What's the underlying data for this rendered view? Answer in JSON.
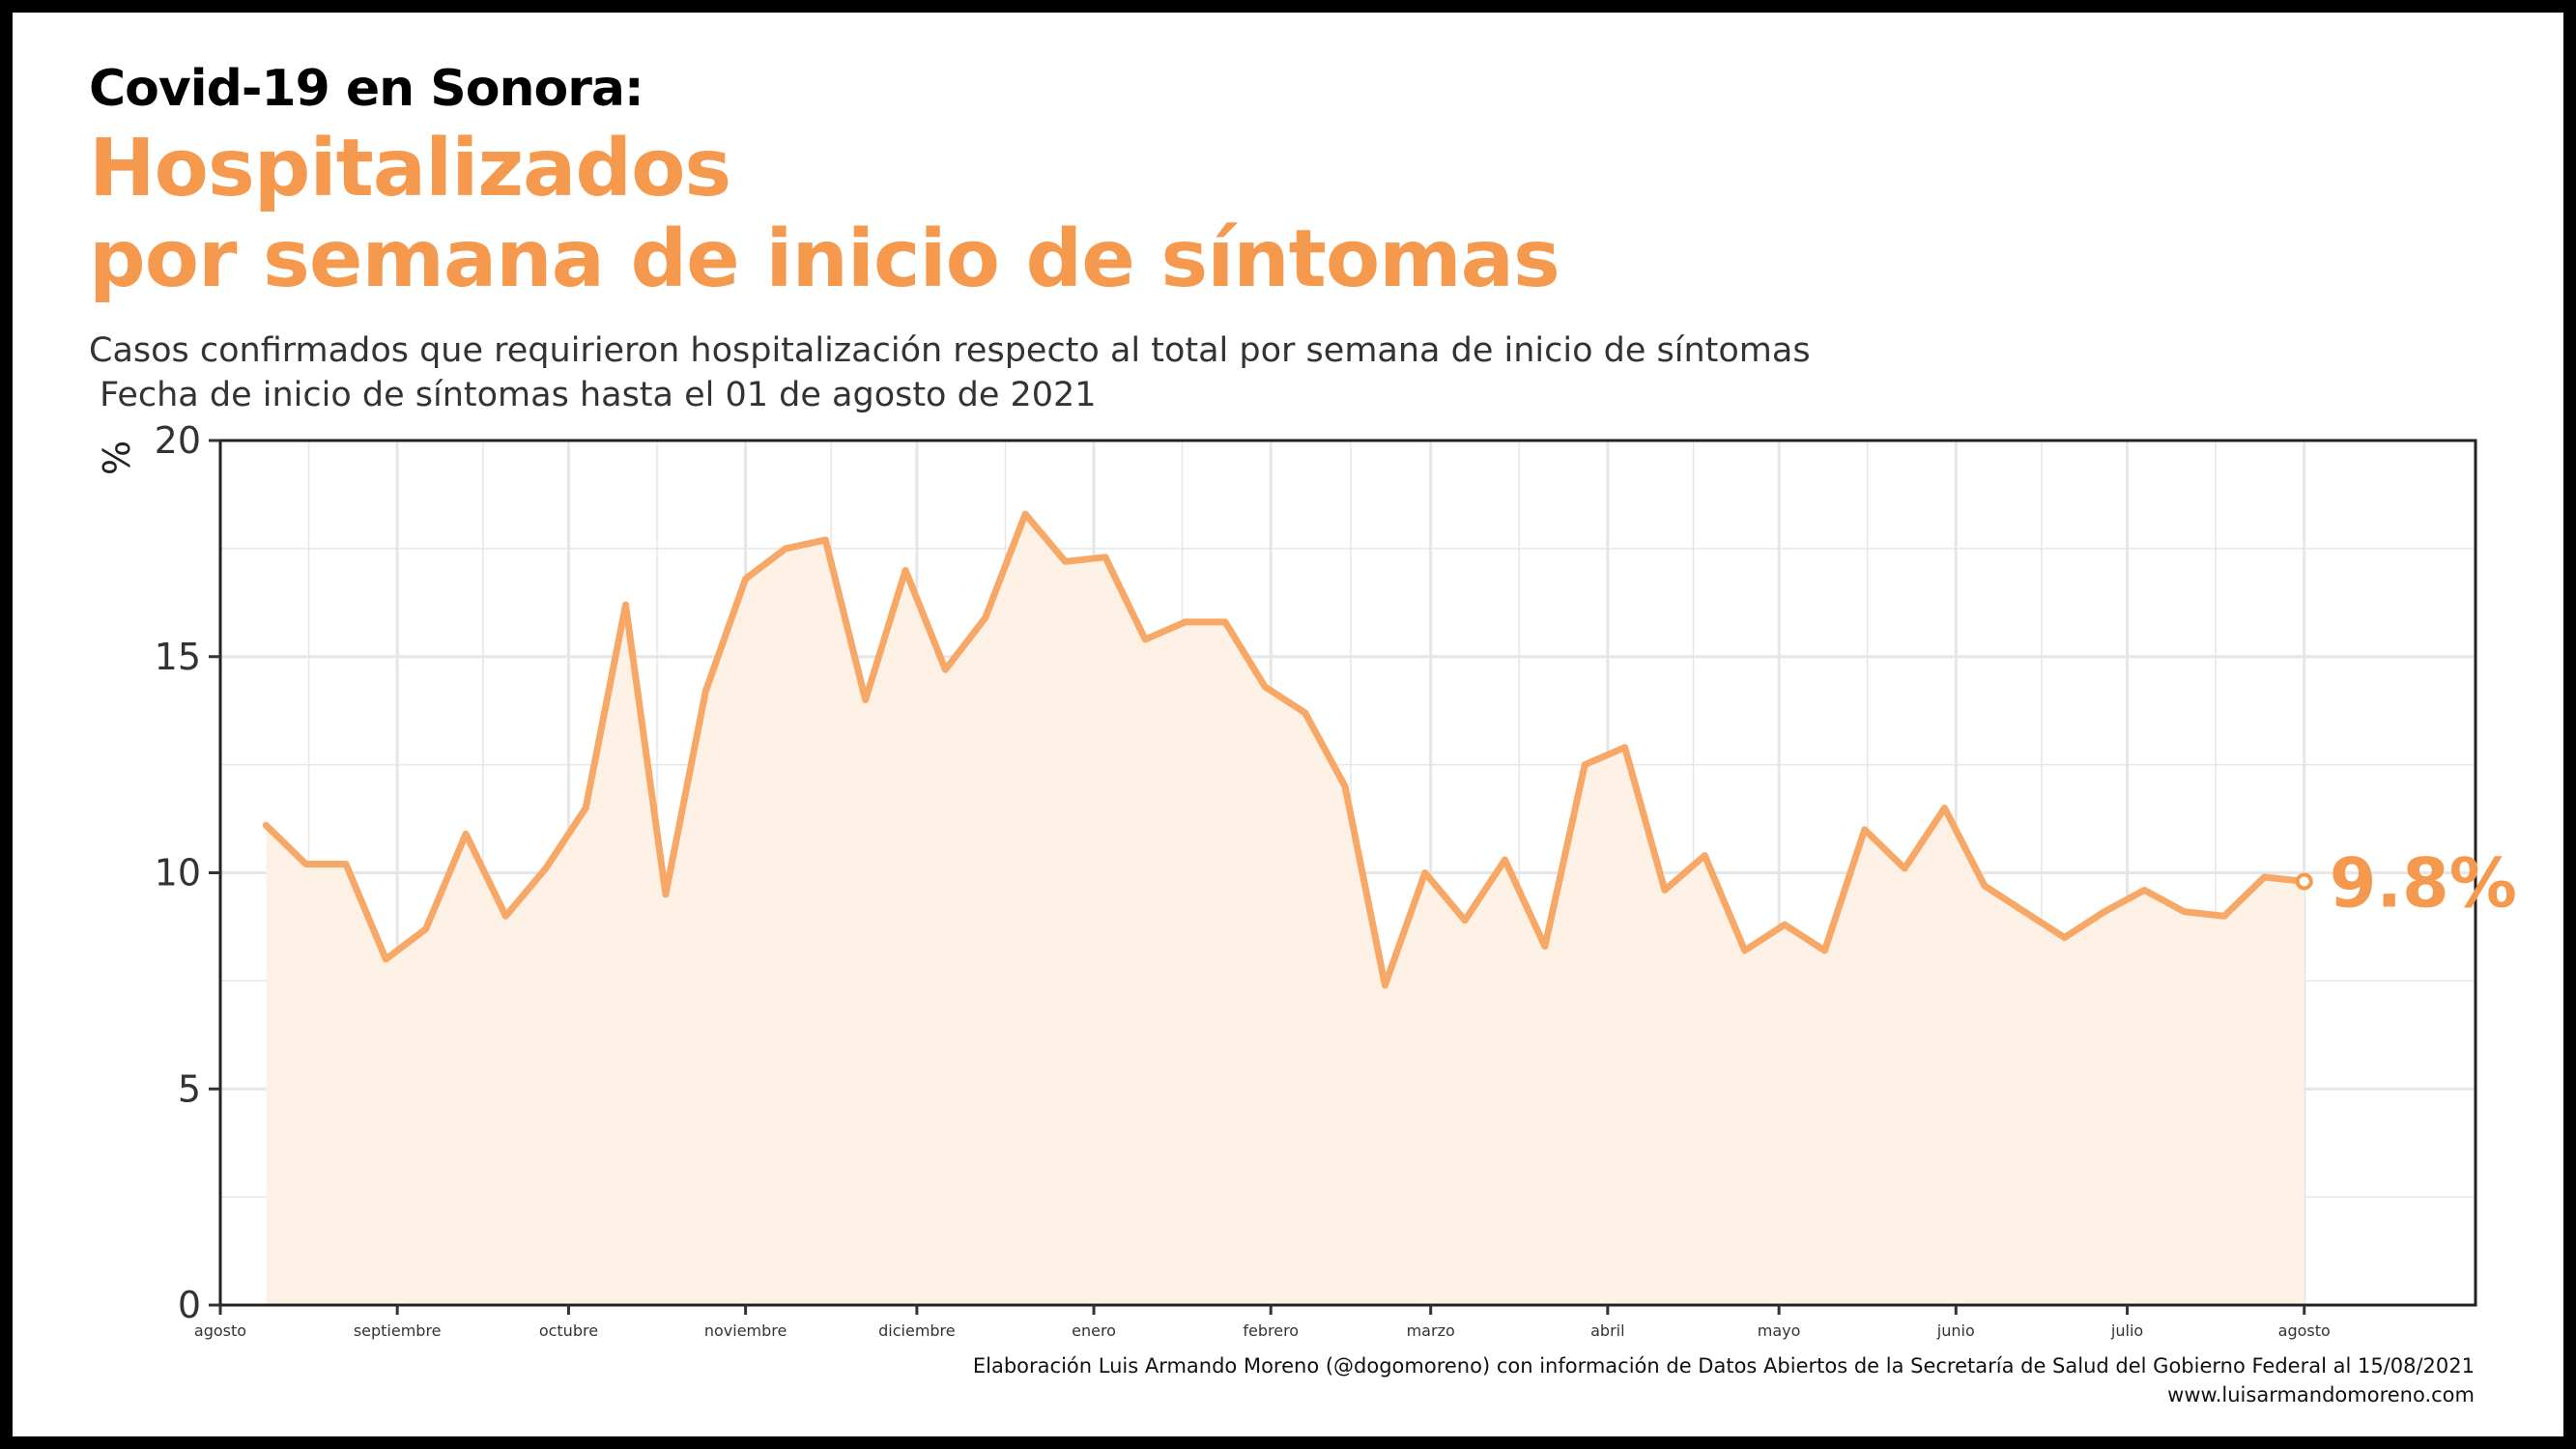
{
  "header": {
    "kicker": "Covid-19 en Sonora:",
    "title_line1": "Hospitalizados",
    "title_line2": "por semana de inicio de síntomas",
    "subtitle_line1": "Casos confirmados que requirieron hospitalización respecto al total por semana de inicio de síntomas",
    "subtitle_line2": " Fecha de inicio de síntomas hasta el 01 de agosto de 2021"
  },
  "footer": {
    "credit": "Elaboración Luis Armando Moreno (@dogomoreno) con información de Datos Abiertos de la Secretaría de Salud del Gobierno Federal al 15/08/2021",
    "website": "www.luisarmandomoreno.com"
  },
  "colors": {
    "line": "#f7a766",
    "area": "#fdf1e6",
    "highlight": "#f5994e",
    "grid": "#e6e6e6",
    "axis_text": "#333333"
  },
  "chart_data": {
    "type": "area",
    "ylabel": "%",
    "ylim": [
      0,
      20
    ],
    "yticks": [
      0,
      5,
      10,
      15,
      20
    ],
    "x_unit": "weekly",
    "xlim": [
      "2020-08-01",
      "2021-08-31"
    ],
    "xticks": [
      {
        "date": "2020-08-01",
        "label": "agosto"
      },
      {
        "date": "2020-09-01",
        "label": "septiembre"
      },
      {
        "date": "2020-10-01",
        "label": "octubre"
      },
      {
        "date": "2020-11-01",
        "label": "noviembre"
      },
      {
        "date": "2020-12-01",
        "label": "diciembre"
      },
      {
        "date": "2021-01-01",
        "label": "enero"
      },
      {
        "date": "2021-02-01",
        "label": "febrero"
      },
      {
        "date": "2021-03-01",
        "label": "marzo"
      },
      {
        "date": "2021-04-01",
        "label": "abril"
      },
      {
        "date": "2021-05-01",
        "label": "mayo"
      },
      {
        "date": "2021-06-01",
        "label": "junio"
      },
      {
        "date": "2021-07-01",
        "label": "julio"
      },
      {
        "date": "2021-08-01",
        "label": "agosto"
      }
    ],
    "grid": true,
    "series": [
      {
        "values": [
          {
            "x": "2020-08-09",
            "y": 11.1
          },
          {
            "x": "2020-08-16",
            "y": 10.2
          },
          {
            "x": "2020-08-23",
            "y": 10.2
          },
          {
            "x": "2020-08-30",
            "y": 8.0
          },
          {
            "x": "2020-09-06",
            "y": 8.7
          },
          {
            "x": "2020-09-13",
            "y": 10.9
          },
          {
            "x": "2020-09-20",
            "y": 9.0
          },
          {
            "x": "2020-09-27",
            "y": 10.1
          },
          {
            "x": "2020-10-04",
            "y": 11.5
          },
          {
            "x": "2020-10-11",
            "y": 16.2
          },
          {
            "x": "2020-10-18",
            "y": 9.5
          },
          {
            "x": "2020-10-25",
            "y": 14.2
          },
          {
            "x": "2020-11-01",
            "y": 16.8
          },
          {
            "x": "2020-11-08",
            "y": 17.5
          },
          {
            "x": "2020-11-15",
            "y": 17.7
          },
          {
            "x": "2020-11-22",
            "y": 14.0
          },
          {
            "x": "2020-11-29",
            "y": 17.0
          },
          {
            "x": "2020-12-06",
            "y": 14.7
          },
          {
            "x": "2020-12-13",
            "y": 15.9
          },
          {
            "x": "2020-12-20",
            "y": 18.3
          },
          {
            "x": "2020-12-27",
            "y": 17.2
          },
          {
            "x": "2021-01-03",
            "y": 17.3
          },
          {
            "x": "2021-01-10",
            "y": 15.4
          },
          {
            "x": "2021-01-17",
            "y": 15.8
          },
          {
            "x": "2021-01-24",
            "y": 15.8
          },
          {
            "x": "2021-01-31",
            "y": 14.3
          },
          {
            "x": "2021-02-07",
            "y": 13.7
          },
          {
            "x": "2021-02-14",
            "y": 12.0
          },
          {
            "x": "2021-02-21",
            "y": 7.4
          },
          {
            "x": "2021-02-28",
            "y": 10.0
          },
          {
            "x": "2021-03-07",
            "y": 8.9
          },
          {
            "x": "2021-03-14",
            "y": 10.3
          },
          {
            "x": "2021-03-21",
            "y": 8.3
          },
          {
            "x": "2021-03-28",
            "y": 12.5
          },
          {
            "x": "2021-04-04",
            "y": 12.9
          },
          {
            "x": "2021-04-11",
            "y": 9.6
          },
          {
            "x": "2021-04-18",
            "y": 10.4
          },
          {
            "x": "2021-04-25",
            "y": 8.2
          },
          {
            "x": "2021-05-02",
            "y": 8.8
          },
          {
            "x": "2021-05-09",
            "y": 8.2
          },
          {
            "x": "2021-05-16",
            "y": 11.0
          },
          {
            "x": "2021-05-23",
            "y": 10.1
          },
          {
            "x": "2021-05-30",
            "y": 11.5
          },
          {
            "x": "2021-06-06",
            "y": 9.7
          },
          {
            "x": "2021-06-13",
            "y": 9.1
          },
          {
            "x": "2021-06-20",
            "y": 8.5
          },
          {
            "x": "2021-06-27",
            "y": 9.1
          },
          {
            "x": "2021-07-04",
            "y": 9.6
          },
          {
            "x": "2021-07-11",
            "y": 9.1
          },
          {
            "x": "2021-07-18",
            "y": 9.0
          },
          {
            "x": "2021-07-25",
            "y": 9.9
          },
          {
            "x": "2021-08-01",
            "y": 9.8
          }
        ]
      }
    ],
    "annotations": [
      {
        "x": "2021-08-01",
        "y": 9.8,
        "text": "9.8%"
      }
    ]
  }
}
